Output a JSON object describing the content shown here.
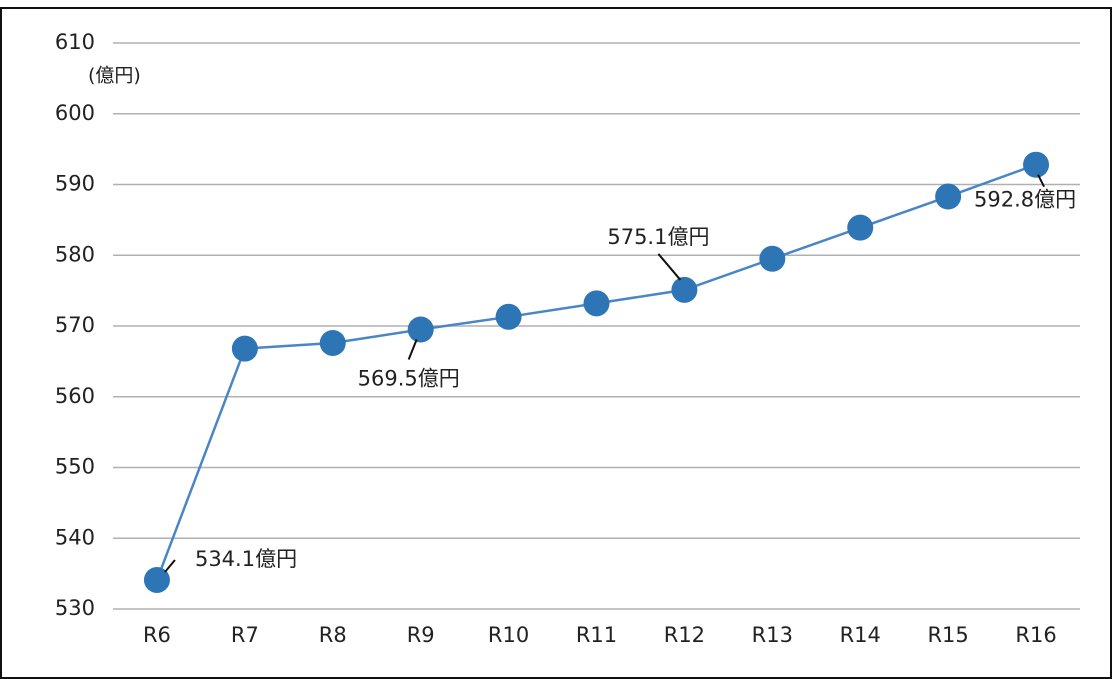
{
  "chart_data": {
    "type": "line",
    "y_axis_label": "(億円)",
    "categories": [
      "R6",
      "R7",
      "R8",
      "R9",
      "R10",
      "R11",
      "R12",
      "R13",
      "R14",
      "R15",
      "R16"
    ],
    "series": [
      {
        "name": "億円",
        "color": "#2e75b6",
        "values": [
          534.1,
          566.8,
          567.6,
          569.5,
          571.3,
          573.2,
          575.1,
          579.5,
          583.9,
          588.3,
          592.8
        ],
        "value_labels": [
          "534.1億円",
          null,
          null,
          "569.5億円",
          null,
          null,
          "575.1億円",
          null,
          null,
          null,
          "592.8億円"
        ]
      }
    ],
    "ylim": [
      530,
      610
    ],
    "yticks": [
      530,
      540,
      550,
      560,
      570,
      580,
      590,
      600,
      610
    ],
    "grid": true
  }
}
